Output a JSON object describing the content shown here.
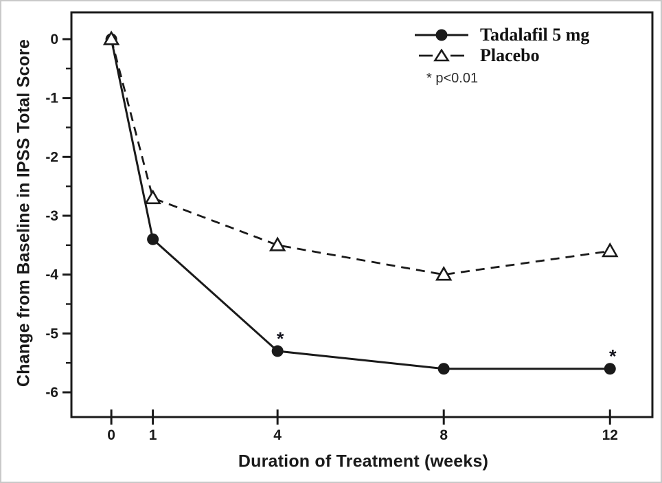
{
  "figure": {
    "background": "#ffffff",
    "frame_color": "#c9c9c9",
    "ink_color": "#1a1a1a"
  },
  "chart_data": {
    "type": "line",
    "title": "",
    "xlabel": "Duration of Treatment (weeks)",
    "ylabel": "Change from Baseline in IPSS Total Score",
    "x": [
      0,
      1,
      4,
      8,
      12
    ],
    "x_ticks": [
      0,
      1,
      4,
      8,
      12
    ],
    "y_ticks": [
      0,
      -1,
      -2,
      -3,
      -4,
      -5,
      -6
    ],
    "y_minor_ticks": [
      -0.5,
      -1.5,
      -2.5,
      -3.5,
      -4.5,
      -5.5
    ],
    "xlim": [
      -0.96,
      13.02
    ],
    "ylim": [
      -6.42,
      0.455
    ],
    "grid": false,
    "legend_position": "top-right",
    "series": [
      {
        "name": "Tadalafil 5 mg",
        "line_style": "solid",
        "marker": "filled-circle",
        "values": [
          0,
          -3.4,
          -5.3,
          -5.6,
          -5.6
        ],
        "significant_x": [
          4,
          12
        ],
        "significance_symbol": "*"
      },
      {
        "name": "Placebo",
        "line_style": "dashed",
        "marker": "open-triangle",
        "values": [
          0,
          -2.7,
          -3.5,
          -4.0,
          -3.6
        ]
      }
    ],
    "annotations": [
      {
        "text": "* p<0.01",
        "location": "below-legend"
      }
    ]
  }
}
